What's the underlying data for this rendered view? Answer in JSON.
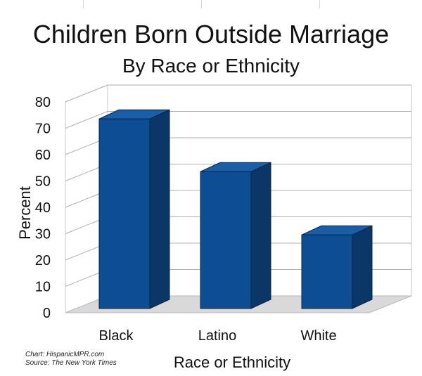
{
  "chart_data": {
    "type": "bar",
    "title": "Children Born Outside Marriage",
    "subtitle": "By Race or Ethnicity",
    "categories": [
      "Black",
      "Latino",
      "White"
    ],
    "values": [
      73,
      53,
      29
    ],
    "xlabel": "Race or Ethnicity",
    "ylabel": "Percent",
    "ylim": [
      0,
      80
    ],
    "yticks": [
      0,
      10,
      20,
      30,
      40,
      50,
      60,
      70,
      80
    ],
    "grid": true,
    "legend": "none",
    "style": "3d",
    "colors": {
      "bar_front": "#0d4d94",
      "bar_top": "#1b5ea8",
      "bar_side": "#0a3768",
      "floor": "#d9d9d9",
      "grid": "#b0b0b0"
    }
  },
  "credits": {
    "chart": "Chart: HispanicMPR.com",
    "source": "Source: The New York Times"
  }
}
